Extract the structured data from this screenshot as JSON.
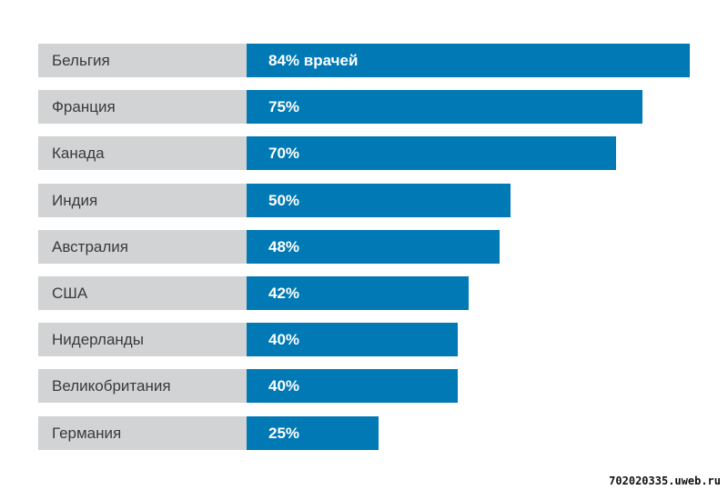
{
  "chart_data": {
    "type": "bar",
    "orientation": "horizontal",
    "categories": [
      "Бельгия",
      "Франция",
      "Канада",
      "Индия",
      "Австралия",
      "США",
      "Нидерланды",
      "Великобритания",
      "Германия"
    ],
    "values": [
      84,
      75,
      70,
      50,
      48,
      42,
      40,
      40,
      25
    ],
    "value_labels": [
      "84% врачей",
      "75%",
      "70%",
      "50%",
      "48%",
      "42%",
      "40%",
      "40%",
      "25%"
    ],
    "xlim": [
      0,
      84
    ]
  },
  "colors": {
    "bar": "#0079b5",
    "category_bg": "#d1d3d4",
    "category_text": "#3a3a3a",
    "bar_text": "#ffffff"
  },
  "watermark": "702020335.uweb.ru"
}
